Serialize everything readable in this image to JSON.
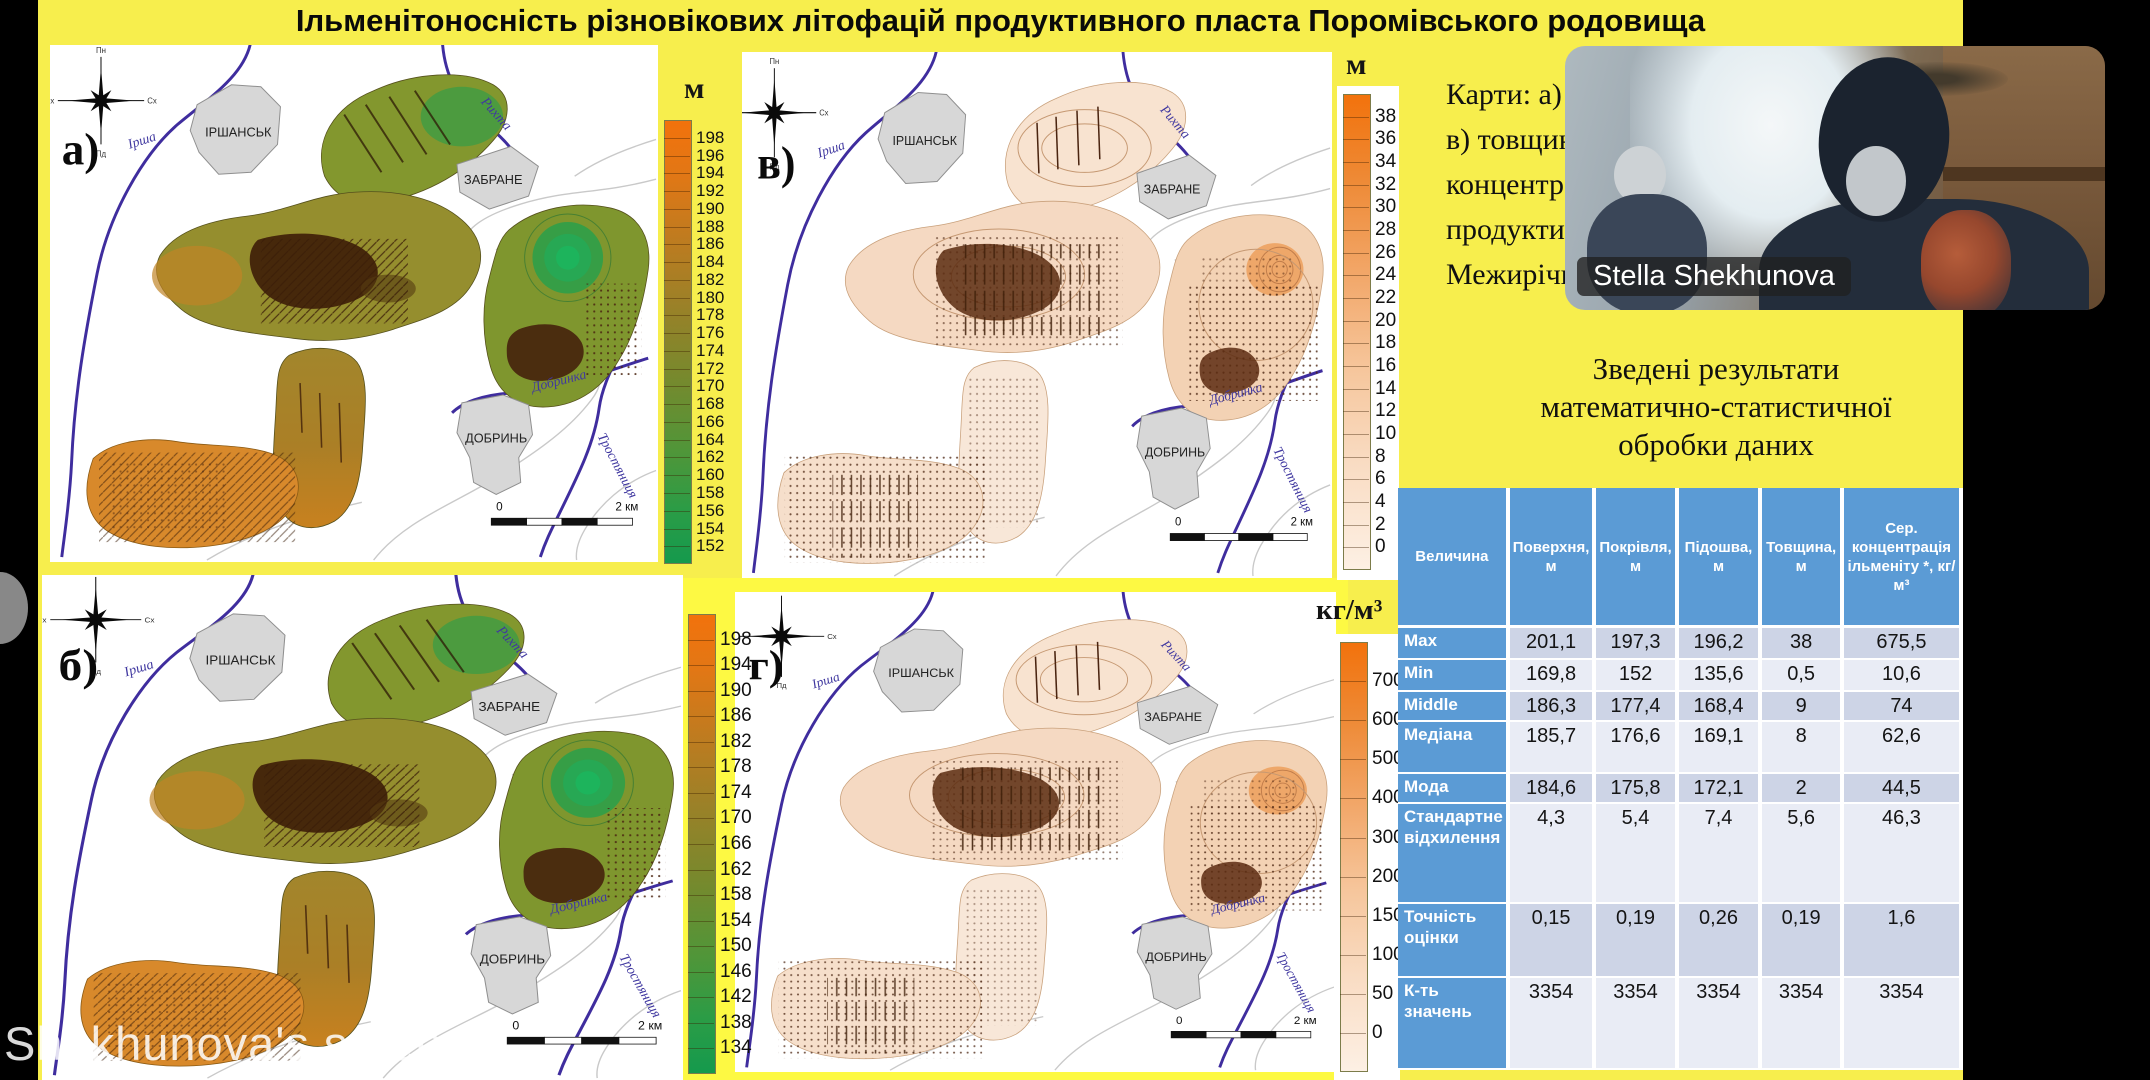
{
  "title": "Ільменітоносність різновікових літофацій продуктивного пласта Поромівського родовища",
  "window": {
    "watermark": "Shekhunova's screen"
  },
  "video": {
    "name_tag": "Stella Shekhunova"
  },
  "caption": {
    "lines": [
      "Карти: а) покр",
      "в) товщини; г)",
      "концентрації і",
      "продуктивного",
      "Межирічному"
    ]
  },
  "maps": {
    "towns": [
      "ІРШАНСЬК",
      "ЗАБРАНЕ",
      "ДОБРИНЬ"
    ],
    "rivers": [
      "Ірша",
      "Рихта",
      "Добринка",
      "Тростяниця"
    ],
    "compass": {
      "n": "Пн",
      "e": "Сх",
      "s": "Пд",
      "w": "Зх"
    },
    "scalebar": {
      "zero": "0",
      "right": "2 км"
    },
    "panels": [
      {
        "id": "a",
        "label": "а)",
        "style": "terrain",
        "highlight": false
      },
      {
        "id": "v",
        "label": "в)",
        "style": "peach",
        "highlight": false
      },
      {
        "id": "b",
        "label": "б)",
        "style": "terrain",
        "highlight": false
      },
      {
        "id": "g",
        "label": "г)",
        "style": "peach",
        "highlight": true
      }
    ]
  },
  "scales": {
    "a": {
      "unit": "м",
      "ticks": [
        198,
        196,
        194,
        192,
        190,
        188,
        186,
        184,
        182,
        180,
        178,
        176,
        174,
        172,
        170,
        168,
        166,
        164,
        162,
        160,
        158,
        156,
        154,
        152
      ],
      "type": "terrain"
    },
    "v": {
      "unit": "м",
      "ticks": [
        38,
        36,
        34,
        32,
        30,
        28,
        26,
        24,
        22,
        20,
        18,
        16,
        14,
        12,
        10,
        8,
        6,
        4,
        2,
        0
      ],
      "type": "peach"
    },
    "b": {
      "unit": "",
      "ticks": [
        198,
        194,
        190,
        186,
        182,
        178,
        174,
        170,
        166,
        162,
        158,
        154,
        150,
        146,
        142,
        138,
        134
      ],
      "type": "terrain"
    },
    "g": {
      "unit": "кг/м³",
      "ticks": [
        700,
        600,
        500,
        400,
        300,
        200,
        150,
        100,
        50,
        0
      ],
      "type": "peach"
    }
  },
  "stats": {
    "title_lines": [
      "Зведені результати",
      "математично-статистичної",
      "обробки даних"
    ],
    "table": {
      "headers": [
        "Величина",
        "Поверхня, м",
        "Покрівля, м",
        "Підошва, м",
        "Товщина, м",
        "Сер. концентрація ільменіту *, кг/м³"
      ],
      "rows": [
        {
          "label": "Max",
          "values": [
            "201,1",
            "197,3",
            "196,2",
            "38",
            "675,5"
          ]
        },
        {
          "label": "Min",
          "values": [
            "169,8",
            "152",
            "135,6",
            "0,5",
            "10,6"
          ]
        },
        {
          "label": "Middle",
          "values": [
            "186,3",
            "177,4",
            "168,4",
            "9",
            "74"
          ]
        },
        {
          "label": "Медіана",
          "values": [
            "185,7",
            "176,6",
            "169,1",
            "8",
            "62,6"
          ]
        },
        {
          "label": "Мода",
          "values": [
            "184,6",
            "175,8",
            "172,1",
            "2",
            "44,5"
          ]
        },
        {
          "label": "Стандартне відхилення",
          "values": [
            "4,3",
            "5,4",
            "7,4",
            "5,6",
            "46,3"
          ]
        },
        {
          "label": "Точність оцінки",
          "values": [
            "0,15",
            "0,19",
            "0,26",
            "0,19",
            "1,6"
          ]
        },
        {
          "label": "К-ть значень",
          "values": [
            "3354",
            "3354",
            "3354",
            "3354",
            "3354"
          ]
        }
      ]
    }
  },
  "colors": {
    "slide_yellow": "#f7ee4d",
    "highlight_yellow": "#fdf943",
    "table_header_blue": "#5b9bd5",
    "row_shade_dark": "#cdd4e6",
    "row_shade_light": "#e9ecf5",
    "river_purple": "#3f2d9e",
    "scale_top_orange": "#f2720c",
    "scale_bottom_green": "#159a4d"
  }
}
